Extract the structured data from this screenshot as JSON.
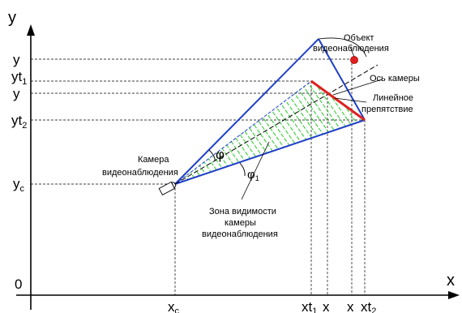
{
  "axes": {
    "x_name": "x",
    "y_name": "y",
    "origin": "0"
  },
  "y_ticks": {
    "y_obj": "y",
    "y_t1": "yt",
    "y_t1_sub": "1",
    "y_mid": "y",
    "y_t2": "yt",
    "y_t2_sub": "2",
    "y_c": "y",
    "y_c_sub": "c"
  },
  "x_ticks": {
    "x_c": "x",
    "x_c_sub": "c",
    "x_t1": "xt",
    "x_t1_sub": "1",
    "x_a": "x",
    "x_b": "x",
    "x_t2": "xt",
    "x_t2_sub": "2"
  },
  "labels": {
    "object_line1": "Объект",
    "object_line2": "видеонаблюдения",
    "camera_axis": "Ось камеры",
    "obstacle_line1": "Линейное",
    "obstacle_line2": "препятствие",
    "camera_line1": "Камера",
    "camera_line2": "видеонаблюдения",
    "visibility_line1": "Зона видимости",
    "visibility_line2": "камеры",
    "visibility_line3": "видеонаблюдения",
    "phi": "φ",
    "phi_sub": "φ",
    "phi_sub_index": "1"
  },
  "colors": {
    "boundary": "#1f3fc8",
    "obstacle": "#e02020",
    "object_point": "#e02020",
    "hatch": "#33cc33",
    "axis": "#000000"
  }
}
